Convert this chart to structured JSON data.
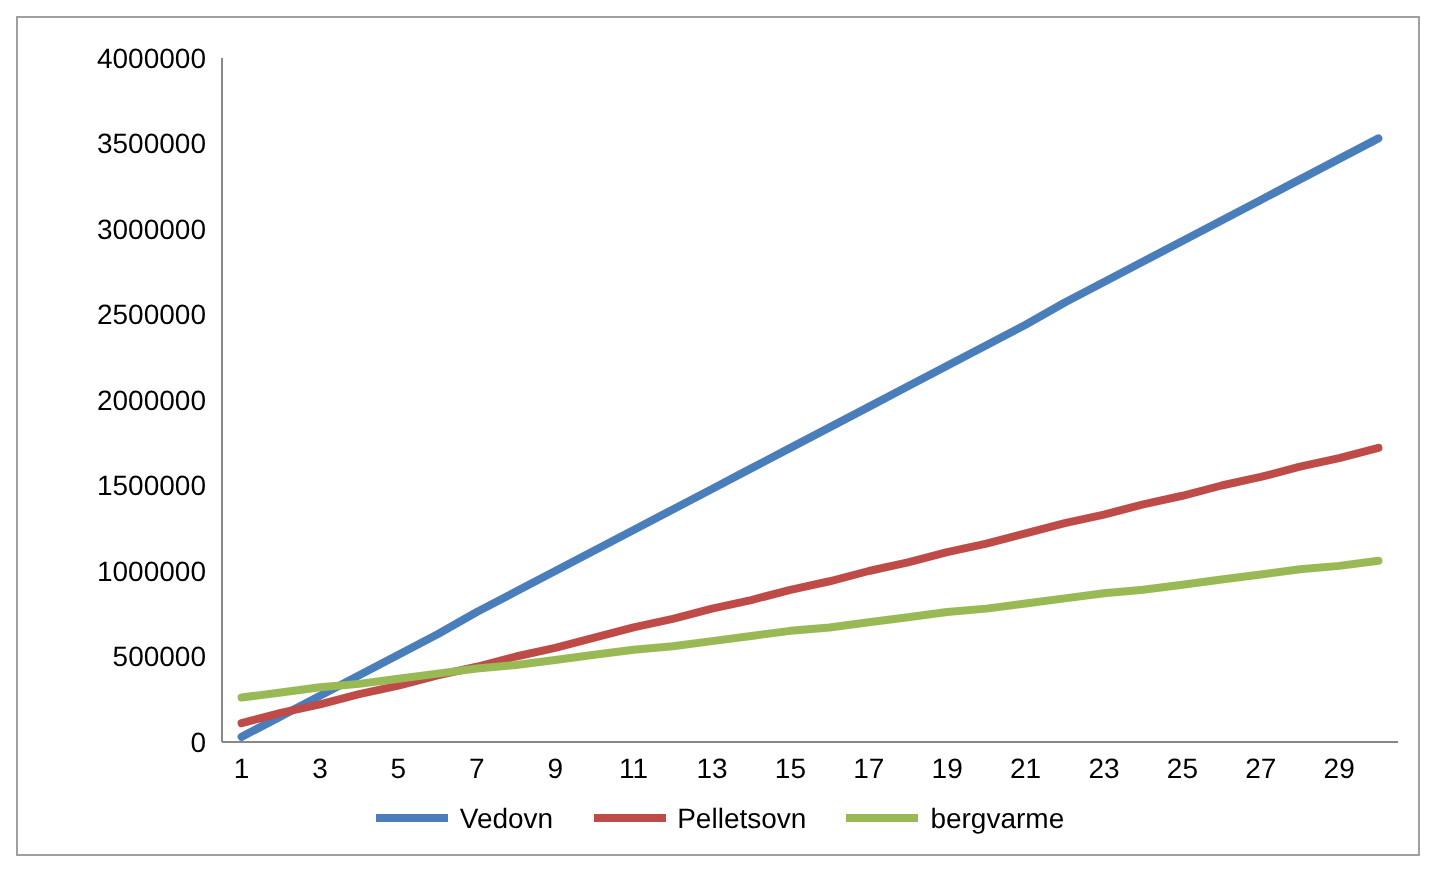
{
  "chart_data": {
    "type": "line",
    "x": [
      1,
      2,
      3,
      4,
      5,
      6,
      7,
      8,
      9,
      10,
      11,
      12,
      13,
      14,
      15,
      16,
      17,
      18,
      19,
      20,
      21,
      22,
      23,
      24,
      25,
      26,
      27,
      28,
      29,
      30
    ],
    "xlim": [
      0.5,
      30.5
    ],
    "xticks": [
      1,
      3,
      5,
      7,
      9,
      11,
      13,
      15,
      17,
      19,
      21,
      23,
      25,
      27,
      29
    ],
    "series": [
      {
        "name": "Vedovn",
        "color": "#4a7ebb",
        "values": [
          30000,
          150000,
          270000,
          390000,
          510000,
          630000,
          760000,
          880000,
          1000000,
          1120000,
          1240000,
          1360000,
          1480000,
          1600000,
          1720000,
          1840000,
          1960000,
          2080000,
          2200000,
          2320000,
          2440000,
          2570000,
          2690000,
          2810000,
          2930000,
          3050000,
          3170000,
          3290000,
          3410000,
          3530000
        ]
      },
      {
        "name": "Pelletsovn",
        "color": "#be4b48",
        "values": [
          110000,
          170000,
          220000,
          280000,
          330000,
          390000,
          440000,
          500000,
          550000,
          610000,
          670000,
          720000,
          780000,
          830000,
          890000,
          940000,
          1000000,
          1050000,
          1110000,
          1160000,
          1220000,
          1280000,
          1330000,
          1390000,
          1440000,
          1500000,
          1550000,
          1610000,
          1660000,
          1720000
        ]
      },
      {
        "name": "bergvarme",
        "color": "#98b954",
        "values": [
          260000,
          290000,
          320000,
          340000,
          370000,
          400000,
          430000,
          450000,
          480000,
          510000,
          540000,
          560000,
          590000,
          620000,
          650000,
          670000,
          700000,
          730000,
          760000,
          780000,
          810000,
          840000,
          870000,
          890000,
          920000,
          950000,
          980000,
          1010000,
          1030000,
          1060000
        ]
      }
    ],
    "ylim": [
      0,
      4000000
    ],
    "yticks": [
      0,
      500000,
      1000000,
      1500000,
      2000000,
      2500000,
      3000000,
      3500000,
      4000000
    ],
    "grid": false,
    "legend": "bottom",
    "marker": "none",
    "line_style": "solid"
  }
}
